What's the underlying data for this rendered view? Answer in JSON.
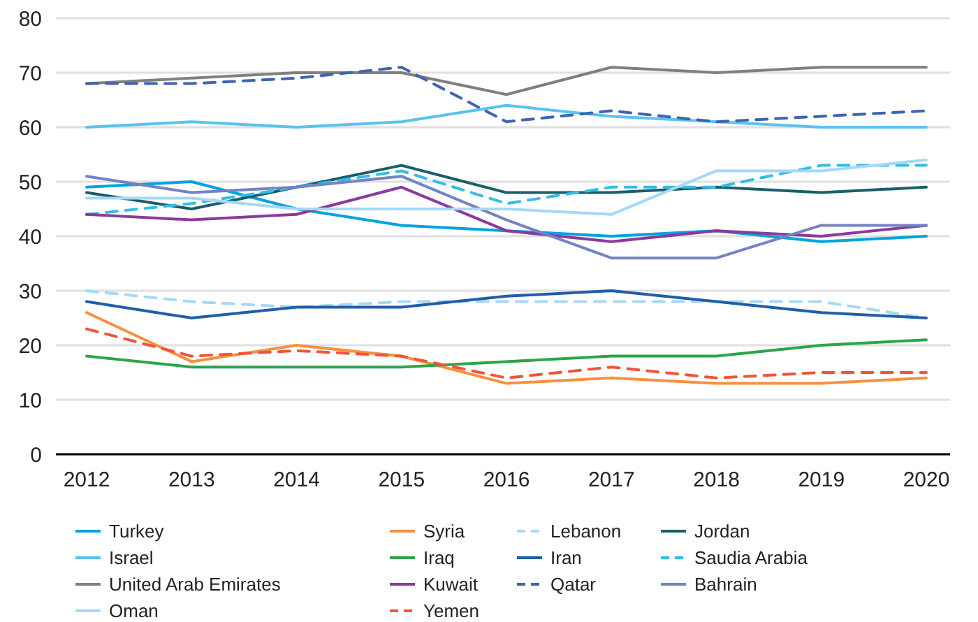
{
  "chart_data": {
    "type": "line",
    "categories": [
      "2012",
      "2013",
      "2014",
      "2015",
      "2016",
      "2017",
      "2018",
      "2019",
      "2020"
    ],
    "ylim": [
      0,
      80
    ],
    "yticks": [
      0,
      10,
      20,
      30,
      40,
      50,
      60,
      70,
      80
    ],
    "grid": "y",
    "legend": "bottom",
    "marker": "none",
    "series": [
      {
        "name": "Turkey",
        "color": "#00a3e0",
        "line_style": "solid",
        "values": [
          49,
          50,
          45,
          42,
          41,
          40,
          41,
          39,
          40
        ]
      },
      {
        "name": "Syria",
        "color": "#f7903d",
        "line_style": "solid",
        "values": [
          26,
          17,
          20,
          18,
          13,
          14,
          13,
          13,
          14
        ]
      },
      {
        "name": "Lebanon",
        "color": "#a6d8f5",
        "line_style": "dashed",
        "values": [
          30,
          28,
          27,
          28,
          28,
          28,
          28,
          28,
          25
        ]
      },
      {
        "name": "Jordan",
        "color": "#1a5e6b",
        "line_style": "solid",
        "values": [
          48,
          45,
          49,
          53,
          48,
          48,
          49,
          48,
          49
        ]
      },
      {
        "name": "Israel",
        "color": "#5bc2f0",
        "line_style": "solid",
        "values": [
          60,
          61,
          60,
          61,
          64,
          62,
          61,
          60,
          60
        ]
      },
      {
        "name": "Iraq",
        "color": "#2ca54a",
        "line_style": "solid",
        "values": [
          18,
          16,
          16,
          16,
          17,
          18,
          18,
          20,
          21
        ]
      },
      {
        "name": "Iran",
        "color": "#1f5ea8",
        "line_style": "solid",
        "values": [
          28,
          25,
          27,
          27,
          29,
          30,
          28,
          26,
          25
        ]
      },
      {
        "name": "Saudia Arabia",
        "color": "#33bde8",
        "line_style": "dashed",
        "values": [
          44,
          46,
          49,
          52,
          46,
          49,
          49,
          53,
          53
        ]
      },
      {
        "name": "United Arab Emirates",
        "color": "#808080",
        "line_style": "solid",
        "values": [
          68,
          69,
          70,
          70,
          66,
          71,
          70,
          71,
          71
        ]
      },
      {
        "name": "Kuwait",
        "color": "#8b3a9c",
        "line_style": "solid",
        "values": [
          44,
          43,
          44,
          49,
          41,
          39,
          41,
          40,
          42
        ]
      },
      {
        "name": "Qatar",
        "color": "#3e64b0",
        "line_style": "dashed",
        "values": [
          68,
          68,
          69,
          71,
          61,
          63,
          61,
          62,
          63
        ]
      },
      {
        "name": "Bahrain",
        "color": "#7483c4",
        "line_style": "solid",
        "values": [
          51,
          48,
          49,
          51,
          43,
          36,
          36,
          42,
          42
        ]
      },
      {
        "name": "Oman",
        "color": "#a6d8f5",
        "line_style": "solid",
        "values": [
          47,
          47,
          45,
          45,
          45,
          44,
          52,
          52,
          54
        ]
      },
      {
        "name": "Yemen",
        "color": "#ef553b",
        "line_style": "dashed",
        "values": [
          23,
          18,
          19,
          18,
          14,
          16,
          14,
          15,
          15
        ]
      }
    ]
  }
}
